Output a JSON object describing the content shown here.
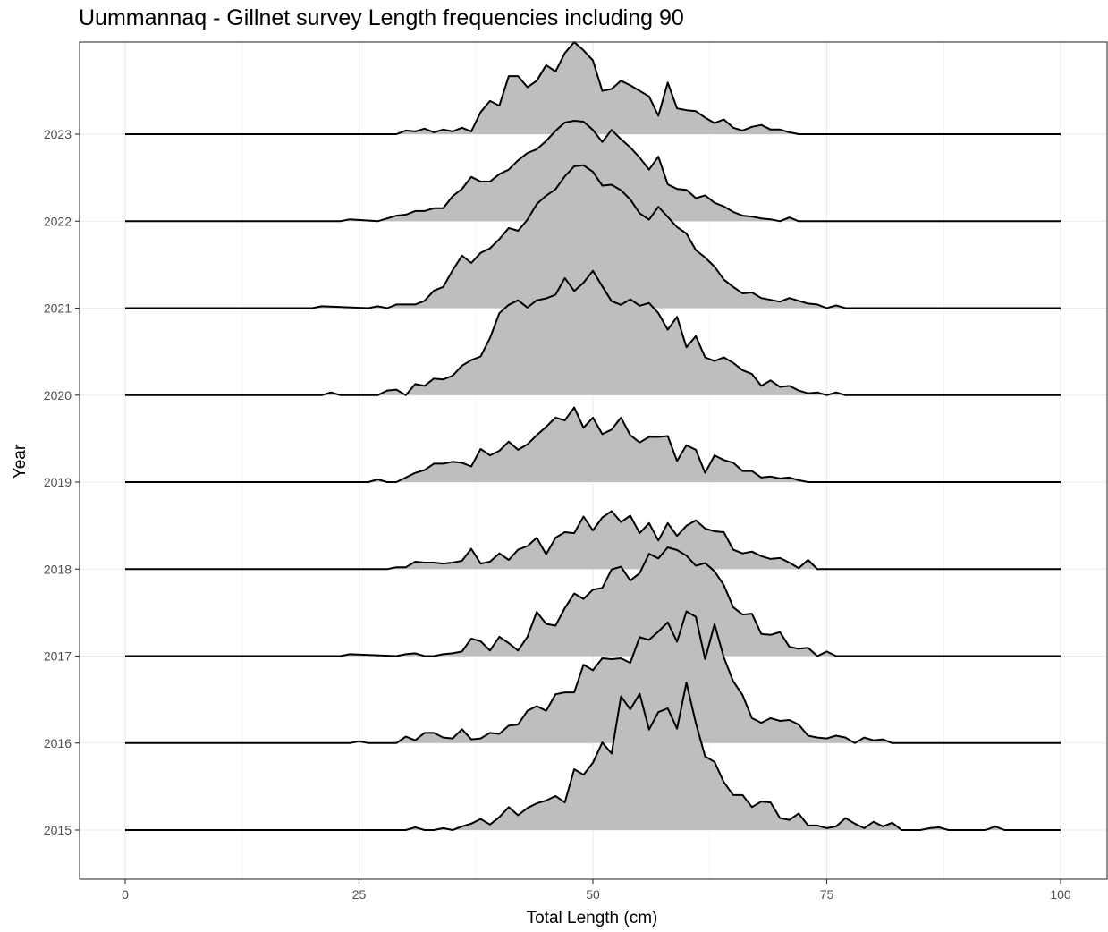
{
  "chart_data": {
    "type": "area",
    "subtype": "ridgeline",
    "title": "Uummannaq - Gillnet survey Length frequencies including 90",
    "xlabel": "Total Length (cm)",
    "ylabel": "Year",
    "xlim": [
      0,
      100
    ],
    "xticks": [
      "0",
      "25",
      "50",
      "75",
      "100"
    ],
    "grid": true,
    "fill_color": "#bebebe",
    "line_color": "#000000",
    "series": [
      {
        "name": "2015",
        "x": [
          0,
          30,
          31,
          32,
          33,
          34,
          35,
          36,
          37,
          38,
          39,
          40,
          41,
          42,
          43,
          44,
          45,
          46,
          47,
          48,
          49,
          50,
          51,
          52,
          53,
          54,
          55,
          56,
          57,
          58,
          59,
          60,
          61,
          62,
          63,
          64,
          65,
          66,
          67,
          68,
          69,
          70,
          71,
          72,
          73,
          74,
          75,
          76,
          77,
          78,
          79,
          80,
          81,
          82,
          83,
          84,
          85,
          86,
          87,
          88,
          92,
          93,
          94,
          100
        ],
        "values": [
          0,
          0,
          0.03,
          0,
          0,
          0.02,
          0,
          0.04,
          0.07,
          0.12,
          0.06,
          0.14,
          0.25,
          0.16,
          0.24,
          0.29,
          0.32,
          0.37,
          0.3,
          0.66,
          0.6,
          0.73,
          0.95,
          0.83,
          1.45,
          1.31,
          1.48,
          1.09,
          1.28,
          1.32,
          1.1,
          1.6,
          1.16,
          0.8,
          0.74,
          0.52,
          0.38,
          0.38,
          0.25,
          0.31,
          0.3,
          0.13,
          0.11,
          0.18,
          0.05,
          0.05,
          0.02,
          0.04,
          0.13,
          0.07,
          0.02,
          0.09,
          0.04,
          0.08,
          0,
          0,
          0,
          0.02,
          0.03,
          0,
          0,
          0.04,
          0,
          0
        ]
      },
      {
        "name": "2016",
        "x": [
          0,
          24,
          25,
          26,
          29,
          30,
          31,
          32,
          33,
          34,
          35,
          36,
          37,
          38,
          39,
          40,
          41,
          42,
          43,
          44,
          45,
          46,
          47,
          48,
          49,
          50,
          51,
          52,
          53,
          54,
          55,
          56,
          57,
          58,
          59,
          60,
          61,
          62,
          63,
          64,
          65,
          66,
          67,
          68,
          69,
          70,
          71,
          72,
          73,
          74,
          75,
          76,
          77,
          78,
          79,
          80,
          81,
          82,
          100
        ],
        "values": [
          0,
          0,
          0.02,
          0,
          0,
          0.07,
          0.03,
          0.11,
          0.11,
          0.06,
          0.05,
          0.15,
          0.04,
          0.05,
          0.11,
          0.1,
          0.19,
          0.2,
          0.35,
          0.4,
          0.35,
          0.53,
          0.55,
          0.55,
          0.85,
          0.79,
          0.92,
          0.91,
          0.92,
          0.87,
          1.15,
          1.12,
          1.21,
          1.31,
          1.1,
          1.43,
          1.37,
          0.91,
          1.29,
          0.93,
          0.67,
          0.52,
          0.27,
          0.22,
          0.27,
          0.24,
          0.25,
          0.2,
          0.08,
          0.06,
          0.05,
          0.08,
          0.06,
          0,
          0.06,
          0.03,
          0.04,
          0,
          0
        ]
      },
      {
        "name": "2017",
        "x": [
          0,
          23,
          24,
          29,
          30,
          31,
          32,
          33,
          34,
          35,
          36,
          37,
          38,
          39,
          40,
          41,
          42,
          43,
          44,
          45,
          46,
          47,
          48,
          49,
          50,
          51,
          52,
          53,
          54,
          55,
          56,
          57,
          58,
          59,
          60,
          61,
          62,
          63,
          64,
          65,
          66,
          67,
          68,
          69,
          70,
          71,
          72,
          73,
          74,
          75,
          76,
          100
        ],
        "values": [
          0,
          0,
          0.02,
          0,
          0.02,
          0.03,
          0,
          0,
          0.02,
          0.03,
          0.05,
          0.19,
          0.16,
          0.06,
          0.21,
          0.14,
          0.06,
          0.21,
          0.48,
          0.35,
          0.33,
          0.52,
          0.68,
          0.62,
          0.72,
          0.74,
          0.94,
          0.97,
          0.82,
          0.9,
          1.11,
          1.06,
          1.18,
          1.15,
          1.09,
          0.98,
          1.01,
          0.92,
          0.77,
          0.53,
          0.45,
          0.46,
          0.24,
          0.23,
          0.26,
          0.1,
          0.08,
          0.09,
          0,
          0.05,
          0,
          0
        ]
      },
      {
        "name": "2018",
        "x": [
          0,
          28,
          29,
          30,
          31,
          32,
          33,
          34,
          35,
          36,
          37,
          38,
          39,
          40,
          41,
          42,
          43,
          44,
          45,
          46,
          47,
          48,
          49,
          50,
          51,
          52,
          53,
          54,
          55,
          56,
          57,
          58,
          59,
          60,
          61,
          62,
          63,
          64,
          65,
          66,
          67,
          68,
          69,
          70,
          71,
          72,
          73,
          74,
          100
        ],
        "values": [
          0,
          0,
          0.02,
          0.02,
          0.08,
          0.07,
          0.07,
          0.06,
          0.07,
          0.09,
          0.22,
          0.06,
          0.08,
          0.17,
          0.1,
          0.21,
          0.25,
          0.34,
          0.16,
          0.34,
          0.4,
          0.39,
          0.57,
          0.42,
          0.56,
          0.63,
          0.51,
          0.58,
          0.39,
          0.5,
          0.31,
          0.5,
          0.36,
          0.47,
          0.53,
          0.44,
          0.41,
          0.4,
          0.21,
          0.17,
          0.19,
          0.14,
          0.11,
          0.12,
          0.07,
          0.01,
          0.1,
          0,
          0
        ]
      },
      {
        "name": "2019",
        "x": [
          0,
          26,
          27,
          28,
          29,
          30,
          31,
          32,
          33,
          34,
          35,
          36,
          37,
          38,
          39,
          40,
          41,
          42,
          43,
          44,
          45,
          46,
          47,
          48,
          49,
          50,
          51,
          52,
          53,
          54,
          55,
          56,
          57,
          58,
          59,
          60,
          61,
          62,
          63,
          64,
          65,
          66,
          67,
          68,
          69,
          70,
          71,
          72,
          73,
          74,
          100
        ],
        "values": [
          0,
          0,
          0.03,
          0,
          0,
          0.05,
          0.1,
          0.13,
          0.2,
          0.2,
          0.22,
          0.21,
          0.17,
          0.36,
          0.29,
          0.34,
          0.44,
          0.35,
          0.41,
          0.51,
          0.6,
          0.7,
          0.67,
          0.81,
          0.59,
          0.7,
          0.52,
          0.57,
          0.7,
          0.51,
          0.43,
          0.49,
          0.49,
          0.5,
          0.23,
          0.4,
          0.35,
          0.1,
          0.29,
          0.24,
          0.21,
          0.12,
          0.12,
          0.05,
          0.06,
          0.04,
          0.05,
          0.02,
          0,
          0,
          0
        ]
      },
      {
        "name": "2020",
        "x": [
          0,
          21,
          22,
          23,
          27,
          28,
          29,
          30,
          31,
          32,
          33,
          34,
          35,
          36,
          37,
          38,
          39,
          40,
          41,
          42,
          43,
          44,
          45,
          46,
          47,
          48,
          49,
          50,
          51,
          52,
          53,
          54,
          55,
          56,
          57,
          58,
          59,
          60,
          61,
          62,
          63,
          64,
          65,
          66,
          67,
          68,
          69,
          70,
          71,
          72,
          73,
          74,
          75,
          76,
          77,
          100
        ],
        "values": [
          0,
          0,
          0.03,
          0,
          0,
          0.05,
          0.06,
          0,
          0.12,
          0.1,
          0.18,
          0.17,
          0.21,
          0.32,
          0.38,
          0.42,
          0.62,
          0.89,
          0.98,
          1.03,
          0.95,
          1.03,
          1.05,
          1.09,
          1.27,
          1.13,
          1.22,
          1.35,
          1.18,
          1.02,
          0.98,
          1.04,
          0.97,
          1.0,
          0.89,
          0.71,
          0.85,
          0.52,
          0.64,
          0.41,
          0.37,
          0.41,
          0.35,
          0.27,
          0.23,
          0.1,
          0.16,
          0.09,
          0.1,
          0.05,
          0.02,
          0.03,
          0,
          0.03,
          0,
          0
        ]
      },
      {
        "name": "2021",
        "x": [
          0,
          20,
          21,
          26,
          27,
          28,
          29,
          30,
          31,
          32,
          33,
          34,
          35,
          36,
          37,
          38,
          39,
          40,
          41,
          42,
          43,
          44,
          45,
          46,
          47,
          48,
          49,
          50,
          51,
          52,
          53,
          54,
          55,
          56,
          57,
          58,
          59,
          60,
          61,
          62,
          63,
          64,
          65,
          66,
          67,
          68,
          69,
          70,
          71,
          72,
          73,
          74,
          75,
          76,
          77,
          100
        ],
        "values": [
          0,
          0,
          0.02,
          0,
          0.02,
          0,
          0.04,
          0.04,
          0.04,
          0.08,
          0.19,
          0.23,
          0.41,
          0.57,
          0.49,
          0.6,
          0.65,
          0.75,
          0.87,
          0.84,
          0.96,
          1.13,
          1.22,
          1.29,
          1.43,
          1.54,
          1.55,
          1.48,
          1.33,
          1.34,
          1.28,
          1.18,
          1.03,
          0.96,
          1.1,
          0.99,
          0.88,
          0.81,
          0.63,
          0.55,
          0.45,
          0.31,
          0.23,
          0.16,
          0.17,
          0.11,
          0.09,
          0.07,
          0.11,
          0.08,
          0.05,
          0.04,
          0,
          0.03,
          0,
          0
        ]
      },
      {
        "name": "2022",
        "x": [
          0,
          23,
          24,
          27,
          28,
          29,
          30,
          31,
          32,
          33,
          34,
          35,
          36,
          37,
          38,
          39,
          40,
          41,
          42,
          43,
          44,
          45,
          46,
          47,
          48,
          49,
          50,
          51,
          52,
          53,
          54,
          55,
          56,
          57,
          58,
          59,
          60,
          61,
          62,
          63,
          64,
          65,
          66,
          67,
          68,
          69,
          70,
          71,
          72,
          73,
          74,
          75,
          76,
          77,
          100
        ],
        "values": [
          0,
          0,
          0.02,
          0,
          0.03,
          0.06,
          0.07,
          0.11,
          0.11,
          0.14,
          0.14,
          0.27,
          0.35,
          0.48,
          0.43,
          0.43,
          0.51,
          0.56,
          0.66,
          0.74,
          0.78,
          0.87,
          0.98,
          1.07,
          1.09,
          1.08,
          0.99,
          0.86,
          0.99,
          0.89,
          0.8,
          0.69,
          0.56,
          0.7,
          0.4,
          0.35,
          0.34,
          0.25,
          0.28,
          0.2,
          0.16,
          0.1,
          0.06,
          0.05,
          0.03,
          0.02,
          0,
          0.04,
          0,
          0,
          0,
          0,
          0,
          0,
          0
        ]
      },
      {
        "name": "2023",
        "x": [
          0,
          29,
          30,
          31,
          32,
          33,
          34,
          35,
          36,
          37,
          38,
          39,
          40,
          41,
          42,
          43,
          44,
          45,
          46,
          47,
          48,
          49,
          50,
          51,
          52,
          53,
          54,
          55,
          56,
          57,
          58,
          59,
          60,
          61,
          62,
          63,
          64,
          65,
          66,
          67,
          68,
          69,
          70,
          71,
          72,
          73,
          74,
          100
        ],
        "values": [
          0,
          0,
          0.04,
          0.03,
          0.06,
          0.02,
          0.05,
          0.03,
          0.07,
          0.03,
          0.24,
          0.36,
          0.31,
          0.63,
          0.63,
          0.51,
          0.58,
          0.75,
          0.68,
          0.88,
          1.0,
          0.91,
          0.8,
          0.47,
          0.49,
          0.58,
          0.53,
          0.47,
          0.41,
          0.2,
          0.56,
          0.28,
          0.26,
          0.25,
          0.18,
          0.12,
          0.16,
          0.07,
          0.04,
          0.08,
          0.1,
          0.05,
          0.05,
          0.02,
          0,
          0,
          0,
          0
        ]
      }
    ]
  }
}
